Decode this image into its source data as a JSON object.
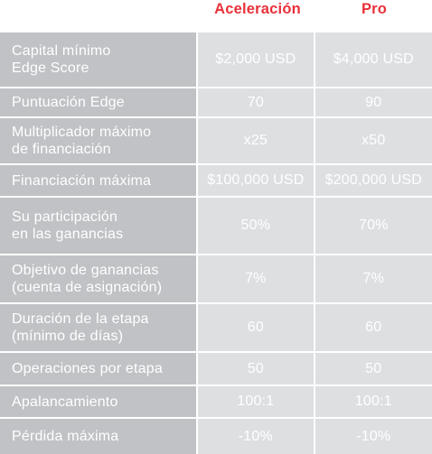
{
  "plans": {
    "accel": "Aceleración",
    "pro": "Pro"
  },
  "rows": [
    {
      "label": "Capital mínimo\nEdge Score",
      "accel": "$2,000 USD",
      "pro": "$4,000 USD"
    },
    {
      "label": "Puntuación Edge",
      "accel": "70",
      "pro": "90"
    },
    {
      "label": "Multiplicador máximo\nde financiación",
      "accel": "x25",
      "pro": "x50"
    },
    {
      "label": "Financiación máxima",
      "accel": "$100,000 USD",
      "pro": "$200,000 USD"
    },
    {
      "label": "Su participación\nen las ganancias",
      "accel": "50%",
      "pro": "70%"
    },
    {
      "label": "Objetivo de ganancias\n(cuenta de asignación)",
      "accel": "7%",
      "pro": "7%"
    },
    {
      "label": "Duración de la etapa\n(mínimo de días)",
      "accel": "60",
      "pro": "60"
    },
    {
      "label": "Operaciones por etapa",
      "accel": "50",
      "pro": "50"
    },
    {
      "label": "Apalancamiento",
      "accel": "100:1",
      "pro": "100:1"
    },
    {
      "label": "Pérdida máxima",
      "accel": "-10%",
      "pro": "-10%"
    }
  ],
  "colors": {
    "accent": "#e8313a",
    "label_bg": "#c0c2c5",
    "value_bg": "#dddfe1",
    "text": "#ffffff"
  }
}
